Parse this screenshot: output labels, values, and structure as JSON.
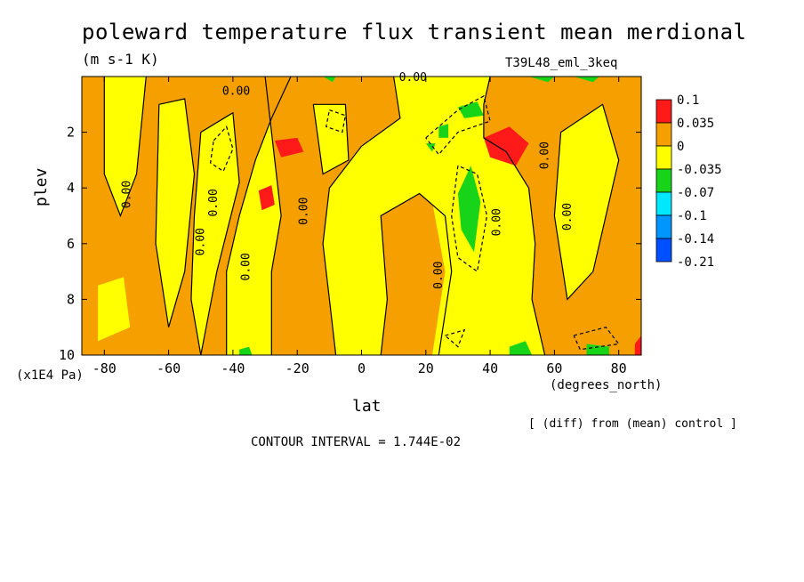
{
  "header": {
    "title": "poleward temperature flux transient mean merdional",
    "units": "(m s-1 K)",
    "run_label": "T39L48_eml_3keq"
  },
  "footer": {
    "diff_note": "[ (diff) from (mean) control ]",
    "contour_interval": "CONTOUR INTERVAL = 1.744E-02"
  },
  "colors": {
    "red": "#ff1a1a",
    "orange": "#f5a000",
    "yellow": "#ffff00",
    "green": "#18d418",
    "cyan": "#00e8ff",
    "lightblue": "#0096ff",
    "blue": "#0050ff"
  },
  "chart_data": {
    "type": "heatmap",
    "title": "poleward temperature flux transient mean merdional",
    "xlabel": "lat",
    "xunit": "(degrees_north)",
    "ylabel": "plev",
    "yunit": "(x1E4 Pa)",
    "xlim": [
      -87,
      87
    ],
    "ylim": [
      10,
      0
    ],
    "xticks": [
      -80,
      -60,
      -40,
      -20,
      0,
      20,
      40,
      60,
      80
    ],
    "xtick_labels": [
      "-80",
      "-60",
      "-40",
      "-20",
      "0",
      "20",
      "40",
      "60",
      "80"
    ],
    "yticks": [
      2,
      4,
      6,
      8,
      10
    ],
    "ytick_labels": [
      "2",
      "4",
      "6",
      "8",
      "10"
    ],
    "colorbar": {
      "labels": [
        "0.1",
        "0.035",
        "0",
        "-0.035",
        "-0.07",
        "-0.1",
        "-0.14",
        "-0.21"
      ],
      "colors": [
        "red",
        "orange",
        "yellow",
        "green",
        "cyan",
        "lightblue",
        "blue"
      ]
    },
    "contour_labels": [
      {
        "text": "0.00",
        "lat": 16,
        "plev": 0.0
      },
      {
        "text": "0.00",
        "lat": -39,
        "plev": 0.5
      },
      {
        "text": "0.00",
        "lat": -73,
        "plev": 4.2
      },
      {
        "text": "0.00",
        "lat": -50,
        "plev": 5.9
      },
      {
        "text": "0.00",
        "lat": -46,
        "plev": 4.5
      },
      {
        "text": "0.00",
        "lat": -36,
        "plev": 6.8
      },
      {
        "text": "0.00",
        "lat": -18,
        "plev": 4.8
      },
      {
        "text": "0.00",
        "lat": 24,
        "plev": 7.1
      },
      {
        "text": "0.00",
        "lat": 42,
        "plev": 5.2
      },
      {
        "text": "0.00",
        "lat": 57,
        "plev": 2.8
      },
      {
        "text": "0.00",
        "lat": 64,
        "plev": 5.0
      }
    ],
    "regions": [
      {
        "value": "orange",
        "points": [
          [
            -87,
            0
          ],
          [
            -22,
            0
          ],
          [
            -28,
            1.5
          ],
          [
            -33,
            3
          ],
          [
            -38,
            5
          ],
          [
            -42,
            7
          ],
          [
            -42,
            10
          ],
          [
            -87,
            10
          ]
        ]
      },
      {
        "value": "orange",
        "points": [
          [
            -30,
            0
          ],
          [
            10,
            0
          ],
          [
            12,
            1.5
          ],
          [
            0,
            2.5
          ],
          [
            -10,
            4
          ],
          [
            -12,
            6
          ],
          [
            -10,
            8
          ],
          [
            -8,
            10
          ],
          [
            -28,
            10
          ],
          [
            -28,
            7
          ],
          [
            -25,
            5
          ],
          [
            -27,
            3
          ]
        ]
      },
      {
        "value": "orange",
        "points": [
          [
            40,
            0
          ],
          [
            87,
            0
          ],
          [
            87,
            10
          ],
          [
            57,
            10
          ],
          [
            53,
            8
          ],
          [
            54,
            6
          ],
          [
            52,
            4
          ],
          [
            45,
            2.7
          ],
          [
            38,
            2.2
          ],
          [
            38,
            1
          ]
        ]
      },
      {
        "value": "orange",
        "points": [
          [
            6,
            5
          ],
          [
            18,
            4.2
          ],
          [
            26,
            5
          ],
          [
            28,
            7
          ],
          [
            24,
            10
          ],
          [
            6,
            10
          ],
          [
            8,
            8
          ]
        ]
      },
      {
        "value": "yellow",
        "points": [
          [
            -80,
            0
          ],
          [
            -67,
            0
          ],
          [
            -70,
            3.5
          ],
          [
            -75,
            5
          ],
          [
            -80,
            3.5
          ]
        ]
      },
      {
        "value": "yellow",
        "points": [
          [
            -63,
            1
          ],
          [
            -55,
            0.8
          ],
          [
            -52,
            3.5
          ],
          [
            -55,
            7
          ],
          [
            -60,
            9
          ],
          [
            -64,
            6
          ]
        ]
      },
      {
        "value": "yellow",
        "points": [
          [
            -50,
            2
          ],
          [
            -40,
            1.3
          ],
          [
            -38,
            3.8
          ],
          [
            -45,
            7
          ],
          [
            -50,
            10
          ],
          [
            -53,
            8
          ],
          [
            -52,
            5
          ]
        ]
      },
      {
        "value": "yellow",
        "points": [
          [
            -15,
            1
          ],
          [
            -5,
            1
          ],
          [
            -4,
            3
          ],
          [
            -12,
            3.5
          ]
        ]
      },
      {
        "value": "yellow",
        "points": [
          [
            62,
            2
          ],
          [
            75,
            1
          ],
          [
            80,
            3
          ],
          [
            72,
            7
          ],
          [
            64,
            8
          ],
          [
            60,
            5
          ]
        ]
      },
      {
        "value": "yellow",
        "points": [
          [
            10,
            0.2
          ],
          [
            35,
            0.4
          ],
          [
            38,
            1.8
          ],
          [
            30,
            3
          ],
          [
            28,
            5
          ],
          [
            30,
            8
          ],
          [
            34,
            10
          ],
          [
            22,
            10
          ],
          [
            26,
            7
          ],
          [
            22,
            4.5
          ],
          [
            14,
            3.8
          ],
          [
            12,
            1.5
          ]
        ]
      },
      {
        "value": "yellow",
        "points": [
          [
            -82,
            7.5
          ],
          [
            -74,
            7.2
          ],
          [
            -72,
            9
          ],
          [
            -82,
            9.5
          ]
        ]
      },
      {
        "value": "red",
        "points": [
          [
            -27,
            2.3
          ],
          [
            -20,
            2.2
          ],
          [
            -18,
            2.7
          ],
          [
            -25,
            2.9
          ]
        ]
      },
      {
        "value": "red",
        "points": [
          [
            -32,
            4.1
          ],
          [
            -28,
            3.9
          ],
          [
            -27,
            4.6
          ],
          [
            -31,
            4.8
          ]
        ]
      },
      {
        "value": "red",
        "points": [
          [
            38,
            2.2
          ],
          [
            46,
            1.8
          ],
          [
            52,
            2.4
          ],
          [
            48,
            3.2
          ],
          [
            40,
            2.9
          ]
        ]
      },
      {
        "value": "red",
        "points": [
          [
            85,
            9.6
          ],
          [
            87,
            9.3
          ],
          [
            87,
            10
          ],
          [
            85,
            10
          ]
        ]
      },
      {
        "value": "green",
        "points": [
          [
            30,
            4.2
          ],
          [
            34,
            3.2
          ],
          [
            37,
            4.5
          ],
          [
            35,
            6.3
          ],
          [
            31,
            5.5
          ]
        ]
      },
      {
        "value": "green",
        "points": [
          [
            30,
            1.1
          ],
          [
            36,
            0.9
          ],
          [
            38,
            1.4
          ],
          [
            32,
            1.5
          ]
        ]
      },
      {
        "value": "green",
        "points": [
          [
            24,
            1.8
          ],
          [
            27,
            1.7
          ],
          [
            27,
            2.2
          ],
          [
            24,
            2.2
          ]
        ]
      },
      {
        "value": "green",
        "points": [
          [
            20,
            2.4
          ],
          [
            23,
            2.4
          ],
          [
            22,
            2.7
          ]
        ]
      },
      {
        "value": "green",
        "points": [
          [
            -38,
            9.8
          ],
          [
            -35,
            9.7
          ],
          [
            -34,
            10
          ],
          [
            -38,
            10
          ]
        ]
      },
      {
        "value": "green",
        "points": [
          [
            46,
            9.7
          ],
          [
            51,
            9.5
          ],
          [
            53,
            10
          ],
          [
            46,
            10
          ]
        ]
      },
      {
        "value": "green",
        "points": [
          [
            70,
            9.6
          ],
          [
            77,
            9.7
          ],
          [
            77,
            10
          ],
          [
            70,
            10
          ]
        ]
      },
      {
        "value": "green",
        "points": [
          [
            -12,
            0
          ],
          [
            -8,
            0
          ],
          [
            -9,
            0.2
          ]
        ]
      },
      {
        "value": "green",
        "points": [
          [
            52,
            0
          ],
          [
            60,
            0
          ],
          [
            58,
            0.2
          ]
        ]
      },
      {
        "value": "green",
        "points": [
          [
            66,
            0
          ],
          [
            74,
            0
          ],
          [
            72,
            0.2
          ]
        ]
      }
    ],
    "contour_lines": [
      {
        "style": "solid",
        "points": [
          [
            -22,
            0
          ],
          [
            -28,
            1.5
          ],
          [
            -33,
            3
          ],
          [
            -38,
            5
          ],
          [
            -42,
            7
          ],
          [
            -42,
            10
          ]
        ]
      },
      {
        "style": "solid",
        "points": [
          [
            10,
            0
          ],
          [
            12,
            1.5
          ],
          [
            0,
            2.5
          ],
          [
            -10,
            4
          ],
          [
            -12,
            6
          ],
          [
            -10,
            8
          ],
          [
            -8,
            10
          ]
        ]
      },
      {
        "style": "solid",
        "points": [
          [
            -28,
            10
          ],
          [
            -28,
            7
          ],
          [
            -25,
            5
          ],
          [
            -27,
            3
          ],
          [
            -30,
            0
          ]
        ]
      },
      {
        "style": "solid",
        "points": [
          [
            40,
            0
          ],
          [
            38,
            1
          ],
          [
            38,
            2.2
          ],
          [
            45,
            2.7
          ],
          [
            52,
            4
          ],
          [
            54,
            6
          ],
          [
            53,
            8
          ],
          [
            57,
            10
          ]
        ]
      },
      {
        "style": "solid",
        "points": [
          [
            6,
            10
          ],
          [
            8,
            8
          ],
          [
            6,
            5
          ],
          [
            18,
            4.2
          ],
          [
            26,
            5
          ],
          [
            28,
            7
          ],
          [
            24,
            10
          ]
        ]
      },
      {
        "style": "solid",
        "points": [
          [
            -80,
            0
          ],
          [
            -80,
            3.5
          ],
          [
            -75,
            5
          ],
          [
            -70,
            3.5
          ],
          [
            -67,
            0
          ]
        ]
      },
      {
        "style": "solid",
        "points": [
          [
            -63,
            1
          ],
          [
            -64,
            6
          ],
          [
            -60,
            9
          ],
          [
            -55,
            7
          ],
          [
            -52,
            3.5
          ],
          [
            -55,
            0.8
          ],
          [
            -63,
            1
          ]
        ]
      },
      {
        "style": "solid",
        "points": [
          [
            -50,
            10
          ],
          [
            -53,
            8
          ],
          [
            -52,
            5
          ],
          [
            -50,
            2
          ],
          [
            -40,
            1.3
          ],
          [
            -38,
            3.8
          ],
          [
            -45,
            7
          ],
          [
            -50,
            10
          ]
        ]
      },
      {
        "style": "solid",
        "points": [
          [
            62,
            2
          ],
          [
            60,
            5
          ],
          [
            64,
            8
          ],
          [
            72,
            7
          ],
          [
            80,
            3
          ],
          [
            75,
            1
          ],
          [
            62,
            2
          ]
        ]
      },
      {
        "style": "solid",
        "points": [
          [
            -15,
            1
          ],
          [
            -12,
            3.5
          ],
          [
            -4,
            3
          ],
          [
            -5,
            1
          ],
          [
            -15,
            1
          ]
        ]
      },
      {
        "style": "dashed",
        "points": [
          [
            30,
            3.2
          ],
          [
            28,
            5
          ],
          [
            30,
            6.5
          ],
          [
            36,
            7
          ],
          [
            39,
            5
          ],
          [
            36,
            3.5
          ],
          [
            30,
            3.2
          ]
        ]
      },
      {
        "style": "dashed",
        "points": [
          [
            20,
            2.2
          ],
          [
            30,
            1.2
          ],
          [
            38,
            0.7
          ],
          [
            40,
            1.6
          ],
          [
            30,
            2
          ],
          [
            24,
            2.8
          ],
          [
            20,
            2.2
          ]
        ]
      },
      {
        "style": "dashed",
        "points": [
          [
            -46,
            2.3
          ],
          [
            -42,
            1.8
          ],
          [
            -40,
            2.6
          ],
          [
            -43,
            3.4
          ],
          [
            -47,
            3.1
          ],
          [
            -46,
            2.3
          ]
        ]
      },
      {
        "style": "dashed",
        "points": [
          [
            -10,
            1.2
          ],
          [
            -5,
            1.4
          ],
          [
            -6,
            2
          ],
          [
            -11,
            1.8
          ],
          [
            -10,
            1.2
          ]
        ]
      },
      {
        "style": "dashed",
        "points": [
          [
            66,
            9.3
          ],
          [
            76,
            9
          ],
          [
            80,
            9.6
          ],
          [
            68,
            9.8
          ],
          [
            66,
            9.3
          ]
        ]
      },
      {
        "style": "dashed",
        "points": [
          [
            26,
            9.3
          ],
          [
            32,
            9.1
          ],
          [
            30,
            9.7
          ],
          [
            26,
            9.3
          ]
        ]
      }
    ]
  }
}
